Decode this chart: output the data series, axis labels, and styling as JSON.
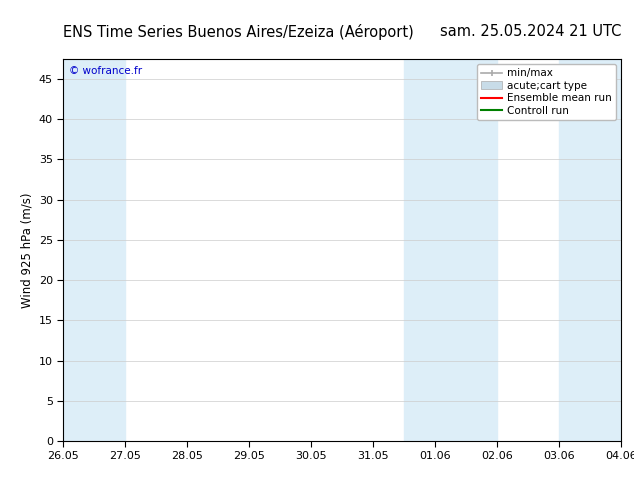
{
  "title_left": "ENS Time Series Buenos Aires/Ezeiza (Aéroport)",
  "title_right": "sam. 25.05.2024 21 UTC",
  "ylabel": "Wind 925 hPa (m/s)",
  "xlim_labels": [
    "26.05",
    "27.05",
    "28.05",
    "29.05",
    "30.05",
    "31.05",
    "01.06",
    "02.06",
    "03.06",
    "04.06"
  ],
  "ylim": [
    0,
    47.5
  ],
  "yticks": [
    0,
    5,
    10,
    15,
    20,
    25,
    30,
    35,
    40,
    45
  ],
  "watermark": "© wofrance.fr",
  "shaded_ranges": [
    [
      0,
      1
    ],
    [
      5.5,
      7.0
    ],
    [
      8.0,
      9.0
    ]
  ],
  "shaded_color": "#ddeef8",
  "background_color": "#ffffff",
  "plot_bg_color": "#ffffff",
  "border_color": "#000000",
  "grid_color": "#cccccc",
  "title_fontsize": 10.5,
  "axis_label_fontsize": 8.5,
  "tick_fontsize": 8,
  "legend_fontsize": 7.5,
  "watermark_color": "#0000cc",
  "minmax_color": "#aaaaaa",
  "fill_color": "#c8dce8",
  "ensemble_color": "#ff0000",
  "control_color": "#008000"
}
